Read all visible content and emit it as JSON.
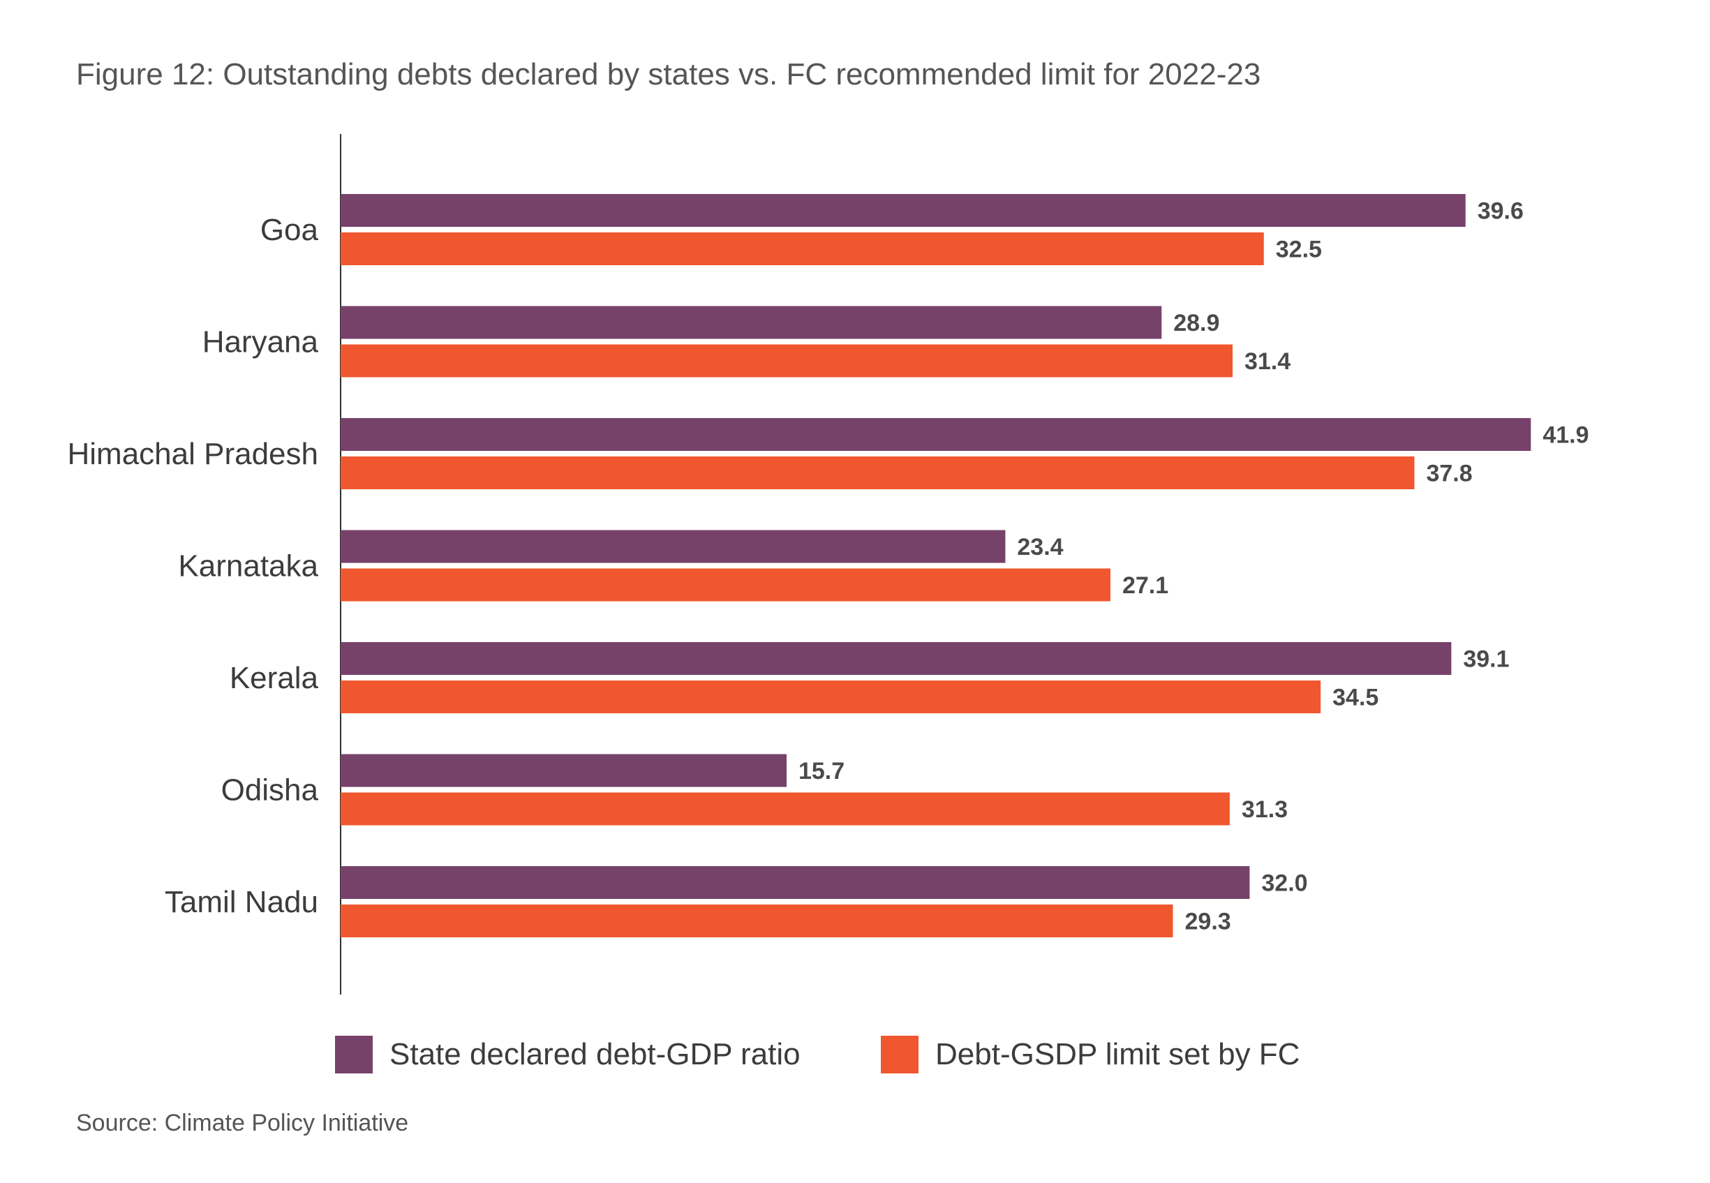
{
  "chart_data": {
    "type": "bar",
    "orientation": "horizontal",
    "title": "Figure 12: Outstanding debts declared by states vs. FC recommended limit for 2022-23",
    "source": "Source: Climate Policy Initiative",
    "categories": [
      "Goa",
      "Haryana",
      "Himachal Pradesh",
      "Karnataka",
      "Kerala",
      "Odisha",
      "Tamil Nadu"
    ],
    "series": [
      {
        "name": "State declared debt-GDP ratio",
        "color": "#77426a",
        "values": [
          39.6,
          28.9,
          41.9,
          23.4,
          39.1,
          15.7,
          32.0
        ],
        "labels": [
          "39.6",
          "28.9",
          "41.9",
          "23.4",
          "39.1",
          "15.7",
          "32.0"
        ]
      },
      {
        "name": "Debt-GSDP limit set by FC",
        "color": "#f0572e",
        "values": [
          32.5,
          31.4,
          37.8,
          27.1,
          34.5,
          31.3,
          29.3
        ],
        "labels": [
          "32.5",
          "31.4",
          "37.8",
          "27.1",
          "34.5",
          "31.3",
          "29.3"
        ]
      }
    ],
    "xlim": [
      0,
      45
    ],
    "grid": false,
    "data_labels": true,
    "legend_position": "bottom"
  }
}
